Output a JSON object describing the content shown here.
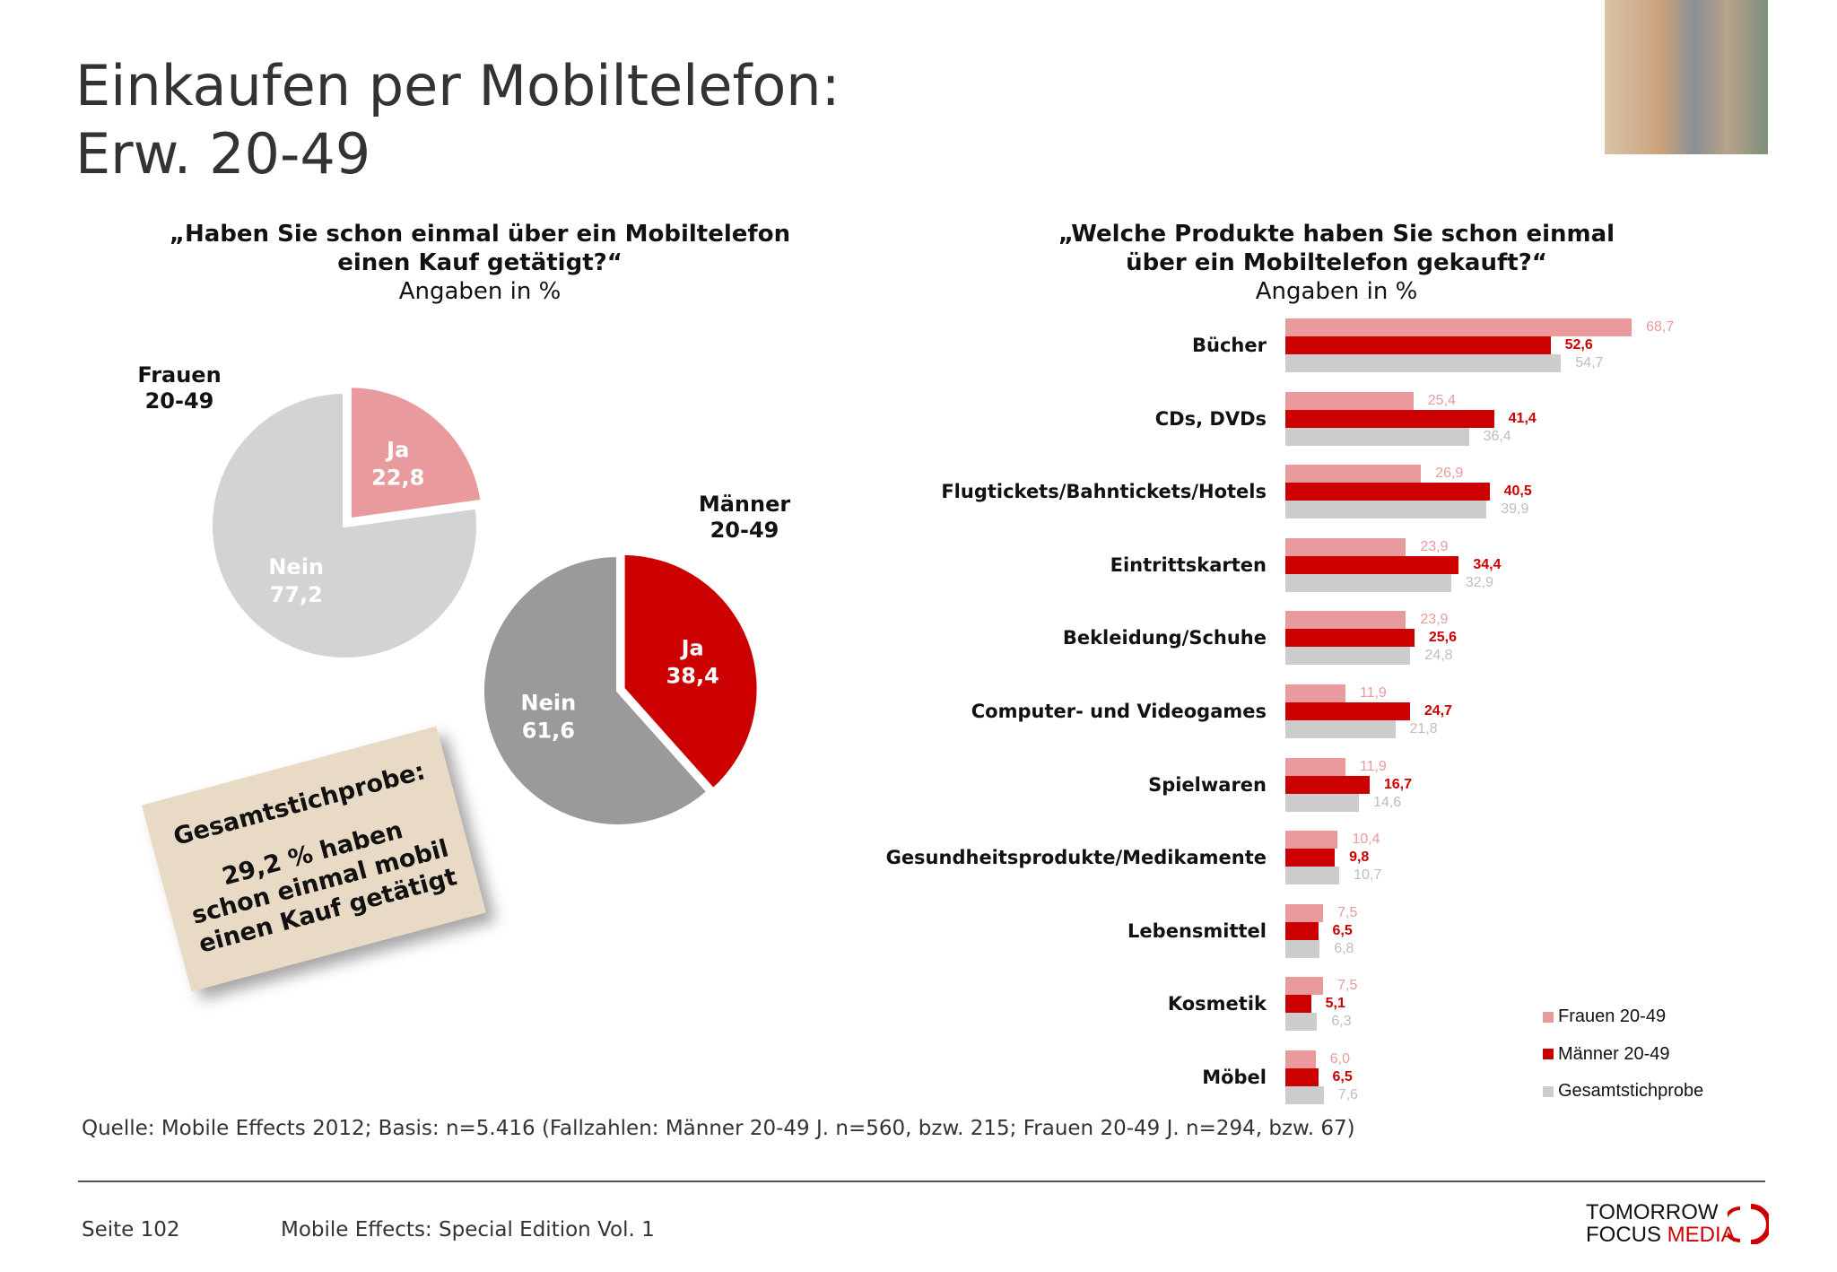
{
  "title_line1": "Einkaufen per Mobiltelefon:",
  "title_line2": "Erw. 20-49",
  "left": {
    "question_line1": "„Haben Sie schon einmal über ein Mobiltelefon",
    "question_line2": "einen Kauf getätigt?“",
    "subtitle": "Angaben in %",
    "frauen_label_1": "Frauen",
    "frauen_label_2": "20-49",
    "maenner_label_1": "Männer",
    "maenner_label_2": "20-49"
  },
  "note": {
    "header": "Gesamtstichprobe:",
    "line1": "29,2 % haben",
    "line2": "schon einmal mobil",
    "line3": "einen Kauf getätigt"
  },
  "right": {
    "question_line1": "„Welche Produkte haben Sie schon einmal",
    "question_line2": "über ein Mobiltelefon gekauft?“",
    "subtitle": "Angaben in %"
  },
  "chart_data": [
    {
      "type": "pie",
      "group": "Frauen 20-49",
      "slices": [
        {
          "label": "Ja",
          "value": 22.8,
          "display": "22,8",
          "color": "#e89a9c"
        },
        {
          "label": "Nein",
          "value": 77.2,
          "display": "77,2",
          "color": "#d3d3d3"
        }
      ]
    },
    {
      "type": "pie",
      "group": "Männer 20-49",
      "slices": [
        {
          "label": "Ja",
          "value": 38.4,
          "display": "38,4",
          "color": "#cc0000"
        },
        {
          "label": "Nein",
          "value": 61.6,
          "display": "61,6",
          "color": "#9a999b"
        }
      ]
    },
    {
      "type": "bar",
      "orientation": "horizontal",
      "categories": [
        "Bücher",
        "CDs, DVDs",
        "Flugtickets/Bahntickets/Hotels",
        "Eintrittskarten",
        "Bekleidung/Schuhe",
        "Computer- und Videogames",
        "Spielwaren",
        "Gesundheitsprodukte/Medikamente",
        "Lebensmittel",
        "Kosmetik",
        "Möbel"
      ],
      "series": [
        {
          "name": "Frauen 20-49",
          "color": "#e89a9c",
          "values": [
            68.7,
            25.4,
            26.9,
            23.9,
            23.9,
            11.9,
            11.9,
            10.4,
            7.5,
            7.5,
            6.0
          ],
          "labels": [
            "68,7",
            "25,4",
            "26,9",
            "23,9",
            "23,9",
            "11,9",
            "11,9",
            "10,4",
            "7,5",
            "7,5",
            "6,0"
          ]
        },
        {
          "name": "Männer 20-49",
          "color": "#cc0000",
          "values": [
            52.6,
            41.4,
            40.5,
            34.4,
            25.6,
            24.7,
            16.7,
            9.8,
            6.5,
            5.1,
            6.5
          ],
          "labels": [
            "52,6",
            "41,4",
            "40,5",
            "34,4",
            "25,6",
            "24,7",
            "16,7",
            "9,8",
            "6,5",
            "5,1",
            "6,5"
          ]
        },
        {
          "name": "Gesamtstichprobe",
          "color": "#cccccc",
          "values": [
            54.7,
            36.4,
            39.9,
            32.9,
            24.8,
            21.8,
            14.6,
            10.7,
            6.8,
            6.3,
            7.6
          ],
          "labels": [
            "54,7",
            "36,4",
            "39,9",
            "32,9",
            "24,8",
            "21,8",
            "14,6",
            "10,7",
            "6,8",
            "6,3",
            "7,6"
          ]
        }
      ],
      "legend_position": "bottom-right",
      "grid": false
    }
  ],
  "source": "Quelle: Mobile Effects 2012; Basis: n=5.416 (Fallzahlen: Männer 20-49 J. n=560, bzw. 215; Frauen 20-49 J. n=294, bzw. 67)",
  "footer": {
    "page": "Seite 102",
    "edition": "Mobile Effects: Special Edition Vol. 1",
    "logo_line1": "TOMORROW",
    "logo_line2a": "FOCUS",
    "logo_line2b": "MEDIA"
  }
}
